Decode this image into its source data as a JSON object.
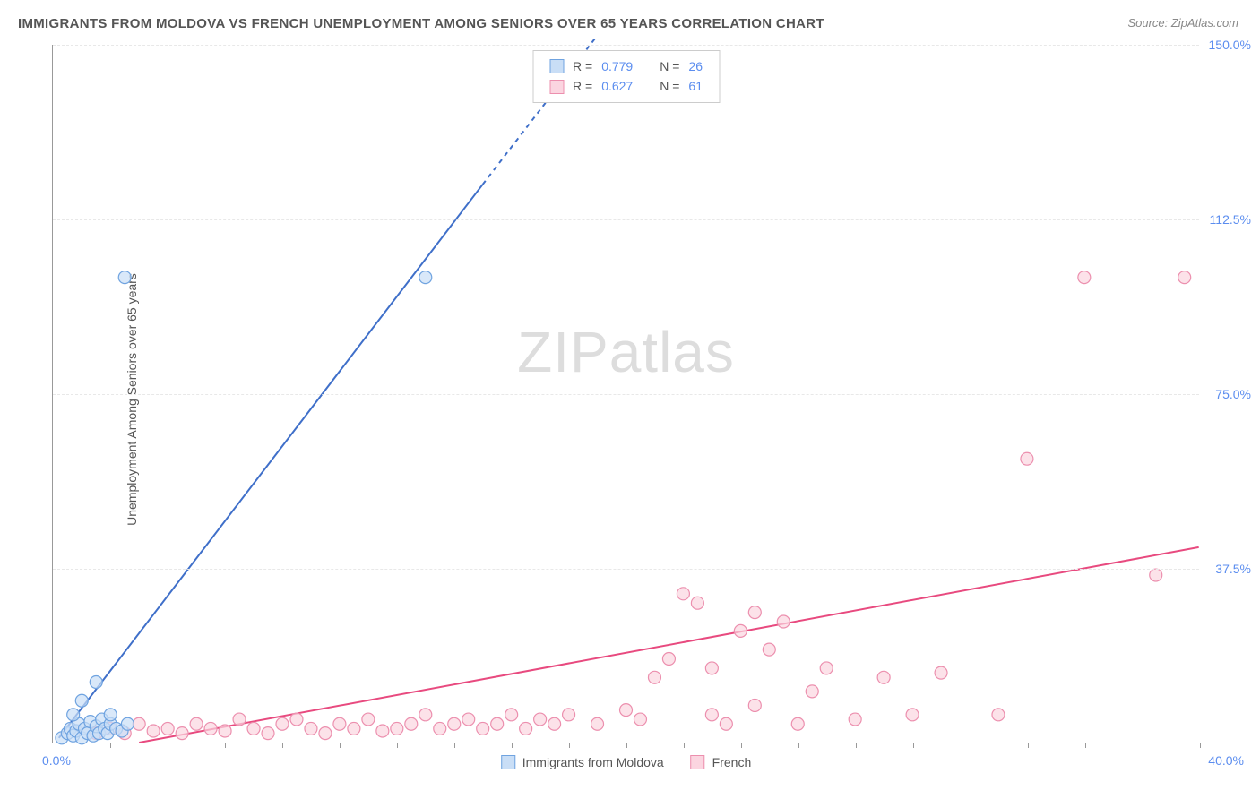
{
  "title": "IMMIGRANTS FROM MOLDOVA VS FRENCH UNEMPLOYMENT AMONG SENIORS OVER 65 YEARS CORRELATION CHART",
  "source": "Source: ZipAtlas.com",
  "y_axis_label": "Unemployment Among Seniors over 65 years",
  "watermark_a": "ZIP",
  "watermark_b": "atlas",
  "chart": {
    "type": "scatter",
    "xlim": [
      0,
      40
    ],
    "ylim": [
      0,
      150
    ],
    "x_origin_label": "0.0%",
    "x_max_label": "40.0%",
    "y_ticks": [
      37.5,
      75.0,
      112.5,
      150.0
    ],
    "y_tick_labels": [
      "37.5%",
      "75.0%",
      "112.5%",
      "150.0%"
    ],
    "x_tick_step": 2,
    "background_color": "#ffffff",
    "grid_color": "#e8e8e8",
    "axis_color": "#999999",
    "marker_radius": 7,
    "marker_stroke_width": 1.2,
    "line_width": 2,
    "series": [
      {
        "id": "moldova",
        "label": "Immigrants from Moldova",
        "fill": "#c9def6",
        "stroke": "#6fa3e0",
        "line_color": "#3f6fc9",
        "r": "0.779",
        "n": "26",
        "trend": {
          "x1": 0.2,
          "y1": 1,
          "x2": 15.0,
          "y2": 120,
          "dash_after_y": 120,
          "x3": 19.0,
          "y3": 152
        },
        "points": [
          [
            0.3,
            1
          ],
          [
            0.5,
            2
          ],
          [
            0.6,
            3
          ],
          [
            0.7,
            1.5
          ],
          [
            0.8,
            2.5
          ],
          [
            0.9,
            4
          ],
          [
            1.0,
            1
          ],
          [
            1.1,
            3
          ],
          [
            1.2,
            2
          ],
          [
            1.3,
            4.5
          ],
          [
            1.4,
            1.5
          ],
          [
            1.5,
            3.5
          ],
          [
            1.6,
            2
          ],
          [
            1.7,
            5
          ],
          [
            1.8,
            3
          ],
          [
            1.9,
            2
          ],
          [
            2.0,
            4
          ],
          [
            2.2,
            3
          ],
          [
            2.4,
            2.5
          ],
          [
            2.6,
            4
          ],
          [
            1.0,
            9
          ],
          [
            1.5,
            13
          ],
          [
            2.0,
            6
          ],
          [
            2.5,
            100
          ],
          [
            13.0,
            100
          ],
          [
            0.7,
            6
          ]
        ]
      },
      {
        "id": "french",
        "label": "French",
        "fill": "#fbd5e0",
        "stroke": "#ec8fae",
        "line_color": "#e84a7f",
        "r": "0.627",
        "n": "61",
        "trend": {
          "x1": 3.0,
          "y1": 0,
          "x2": 40.0,
          "y2": 42
        },
        "points": [
          [
            1.5,
            2
          ],
          [
            2.0,
            3
          ],
          [
            2.5,
            2
          ],
          [
            3.0,
            4
          ],
          [
            3.5,
            2.5
          ],
          [
            4.0,
            3
          ],
          [
            4.5,
            2
          ],
          [
            5.0,
            4
          ],
          [
            5.5,
            3
          ],
          [
            6.0,
            2.5
          ],
          [
            6.5,
            5
          ],
          [
            7.0,
            3
          ],
          [
            7.5,
            2
          ],
          [
            8.0,
            4
          ],
          [
            8.5,
            5
          ],
          [
            9.0,
            3
          ],
          [
            9.5,
            2
          ],
          [
            10.0,
            4
          ],
          [
            10.5,
            3
          ],
          [
            11.0,
            5
          ],
          [
            11.5,
            2.5
          ],
          [
            12.0,
            3
          ],
          [
            12.5,
            4
          ],
          [
            13.0,
            6
          ],
          [
            13.5,
            3
          ],
          [
            14.0,
            4
          ],
          [
            14.5,
            5
          ],
          [
            15.0,
            3
          ],
          [
            15.5,
            4
          ],
          [
            16.0,
            6
          ],
          [
            16.5,
            3
          ],
          [
            17.0,
            5
          ],
          [
            17.5,
            4
          ],
          [
            18.0,
            6
          ],
          [
            19.0,
            4
          ],
          [
            20.0,
            7
          ],
          [
            20.5,
            5
          ],
          [
            21.0,
            14
          ],
          [
            21.5,
            18
          ],
          [
            22.0,
            32
          ],
          [
            22.5,
            30
          ],
          [
            23.0,
            6
          ],
          [
            23.5,
            4
          ],
          [
            24.0,
            24
          ],
          [
            24.5,
            28
          ],
          [
            25.0,
            20
          ],
          [
            25.5,
            26
          ],
          [
            26.0,
            4
          ],
          [
            26.5,
            11
          ],
          [
            27.0,
            16
          ],
          [
            28.0,
            5
          ],
          [
            29.0,
            14
          ],
          [
            30.0,
            6
          ],
          [
            31.0,
            15
          ],
          [
            33.0,
            6
          ],
          [
            34.0,
            61
          ],
          [
            36.0,
            100
          ],
          [
            38.5,
            36
          ],
          [
            39.5,
            100
          ],
          [
            23.0,
            16
          ],
          [
            24.5,
            8
          ]
        ]
      }
    ]
  },
  "stats_box": {
    "r_label": "R =",
    "n_label": "N ="
  }
}
